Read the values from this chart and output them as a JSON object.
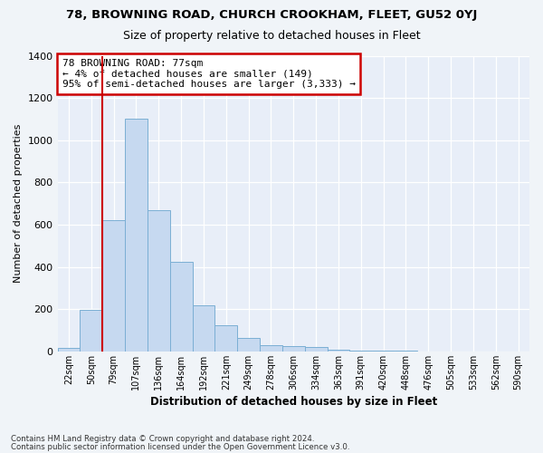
{
  "title": "78, BROWNING ROAD, CHURCH CROOKHAM, FLEET, GU52 0YJ",
  "subtitle": "Size of property relative to detached houses in Fleet",
  "xlabel": "Distribution of detached houses by size in Fleet",
  "ylabel": "Number of detached properties",
  "footer1": "Contains HM Land Registry data © Crown copyright and database right 2024.",
  "footer2": "Contains public sector information licensed under the Open Government Licence v3.0.",
  "annotation_line1": "78 BROWNING ROAD: 77sqm",
  "annotation_line2": "← 4% of detached houses are smaller (149)",
  "annotation_line3": "95% of semi-detached houses are larger (3,333) →",
  "bar_values": [
    15,
    195,
    620,
    1100,
    670,
    425,
    220,
    125,
    65,
    30,
    25,
    20,
    10,
    5,
    3,
    2,
    1,
    1,
    1,
    1,
    1
  ],
  "bar_labels": [
    "22sqm",
    "50sqm",
    "79sqm",
    "107sqm",
    "136sqm",
    "164sqm",
    "192sqm",
    "221sqm",
    "249sqm",
    "278sqm",
    "306sqm",
    "334sqm",
    "363sqm",
    "391sqm",
    "420sqm",
    "448sqm",
    "476sqm",
    "505sqm",
    "533sqm",
    "562sqm",
    "590sqm"
  ],
  "bar_color": "#c6d9f0",
  "bar_edgecolor": "#7bafd4",
  "vline_color": "#cc0000",
  "annotation_box_edgecolor": "#cc0000",
  "ylim": [
    0,
    1400
  ],
  "yticks": [
    0,
    200,
    400,
    600,
    800,
    1000,
    1200,
    1400
  ],
  "bg_color": "#f0f4f8",
  "plot_bg_color": "#e8eef8",
  "grid_color": "#ffffff",
  "figsize": [
    6.0,
    5.0
  ],
  "dpi": 100,
  "vline_pos": 2.0
}
